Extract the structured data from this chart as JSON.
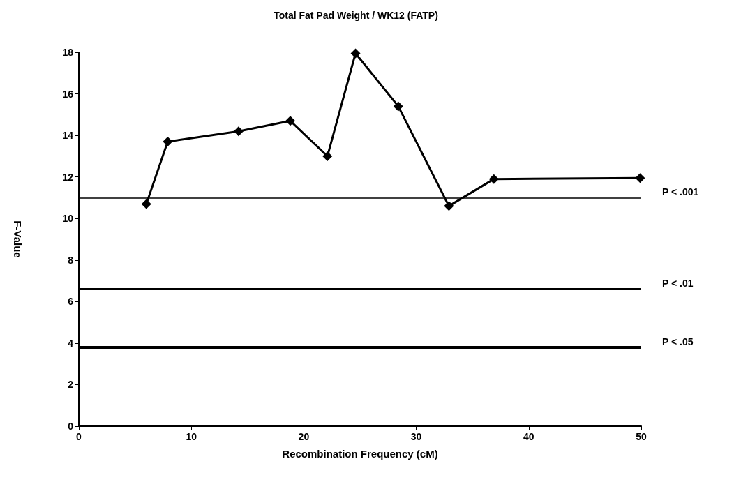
{
  "chart_data": {
    "type": "line",
    "title": "Total Fat Pad Weight / WK12 (FATP)",
    "xlabel": "Recombination Frequency (cM)",
    "ylabel": "F-Value",
    "series": [
      {
        "color": "#000000",
        "x": [
          6,
          7.9,
          14.2,
          18.8,
          22.1,
          24.6,
          28.4,
          32.9,
          36.9,
          49.9
        ],
        "values": [
          10.7,
          13.7,
          14.2,
          14.7,
          13,
          17.95,
          15.4,
          10.6,
          11.9,
          11.95
        ]
      }
    ],
    "xlim": [
      0,
      50
    ],
    "xticks": [
      0,
      10,
      20,
      30,
      40,
      50
    ],
    "ylim": [
      0,
      18
    ],
    "yticks": [
      0,
      2,
      4,
      6,
      8,
      10,
      12,
      14,
      16,
      18
    ],
    "ref_lines": [
      {
        "axis": "y",
        "value": 11,
        "label": "P < .001",
        "color": "#000000"
      },
      {
        "axis": "y",
        "value": 6.6,
        "label": "P < .01",
        "color": "#000000"
      },
      {
        "axis": "y",
        "value": 3.8,
        "label": "P < .05",
        "color": "#000000"
      }
    ],
    "marker": "diamond",
    "line_style": "solid",
    "grid": false
  }
}
